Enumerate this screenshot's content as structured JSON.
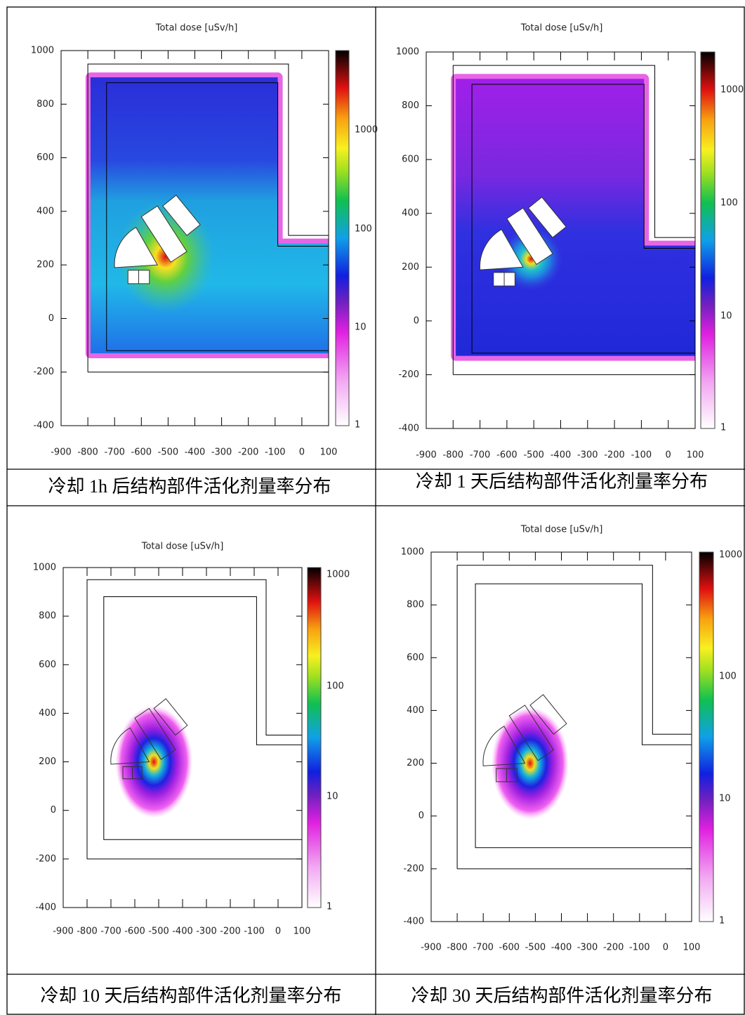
{
  "table": {
    "cells": [
      {
        "plot_title": "Total  dose [uSv/h]",
        "yticks": [
          1000,
          800,
          600,
          400,
          200,
          0,
          -200,
          -400
        ],
        "xticks": [
          -900,
          -800,
          -700,
          -600,
          -500,
          -400,
          -300,
          -200,
          -100,
          0,
          100
        ],
        "colorbar_ticks": [
          1000,
          100,
          10,
          1
        ],
        "caption": "冷却 1h 后结构部件活化剂量率分布"
      },
      {
        "plot_title": "Total  dose [uSv/h]",
        "yticks": [
          1000,
          800,
          600,
          400,
          200,
          0,
          -200,
          -400
        ],
        "xticks": [
          -900,
          -800,
          -700,
          -600,
          -500,
          -400,
          -300,
          -200,
          -100,
          0,
          100
        ],
        "colorbar_ticks": [
          1000,
          100,
          10,
          1
        ],
        "caption": "冷却 1 天后结构部件活化剂量率分布"
      },
      {
        "plot_title": "Total  dose [uSv/h]",
        "yticks": [
          1000,
          800,
          600,
          400,
          200,
          0,
          -200,
          -400
        ],
        "xticks": [
          -900,
          -800,
          -700,
          -600,
          -500,
          -400,
          -300,
          -200,
          -100,
          0,
          100
        ],
        "colorbar_ticks": [
          1000,
          100,
          10,
          1
        ],
        "caption": "冷却 10 天后结构部件活化剂量率分布"
      },
      {
        "plot_title": "Total  dose [uSv/h]",
        "yticks": [
          1000,
          800,
          600,
          400,
          200,
          0,
          -200,
          -400
        ],
        "xticks": [
          -900,
          -800,
          -700,
          -600,
          -500,
          -400,
          -300,
          -200,
          -100,
          0,
          100
        ],
        "colorbar_ticks": [
          1000,
          100,
          10,
          1
        ],
        "caption": "冷却 30 天后结构部件活化剂量率分布"
      }
    ]
  }
}
